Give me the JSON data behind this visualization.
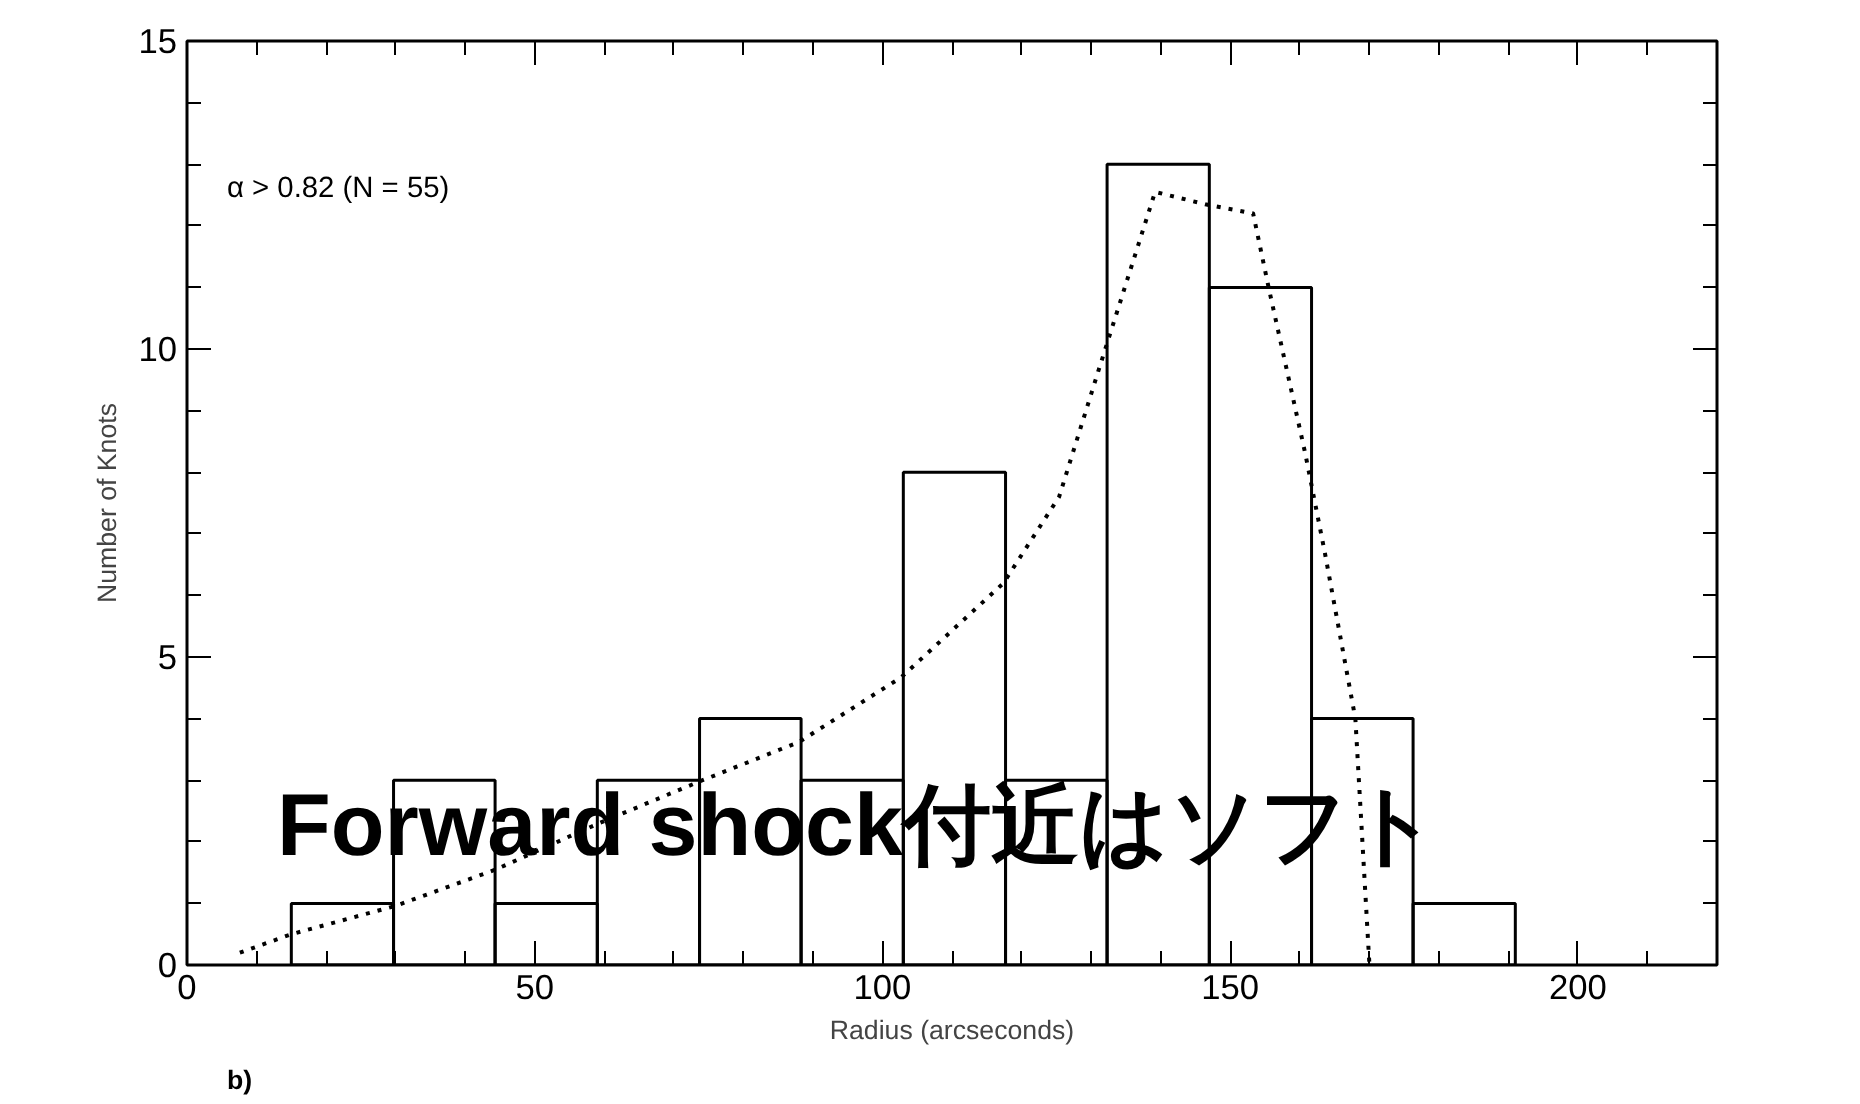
{
  "chart_data": {
    "type": "histogram",
    "xlabel": "Radius (arcseconds)",
    "ylabel": "Number of Knots",
    "bins": [
      15,
      29.7,
      44.3,
      59,
      73.7,
      88.3,
      103,
      117.7,
      132.3,
      147,
      161.7,
      176.3,
      191
    ],
    "values": [
      1,
      3,
      1,
      3,
      4,
      3,
      8,
      3,
      13,
      11,
      4,
      1
    ],
    "color": "#000000",
    "series": [
      {
        "type": "line",
        "color": "#000000",
        "line_style": "dotted",
        "x": [
          7.6,
          15,
          30,
          44.4,
          59,
          73.7,
          88,
          102.7,
          117.4,
          125.4,
          131.2,
          139.2,
          146.4,
          153.3,
          155.6,
          160.8,
          163.6,
          168,
          170
        ],
        "values": [
          0.2,
          0.5,
          0.96,
          1.55,
          2.29,
          2.98,
          3.62,
          4.67,
          6.2,
          7.6,
          9.7,
          12.55,
          12.35,
          12.2,
          10.96,
          8.3,
          6.7,
          4.0,
          0.05
        ]
      }
    ],
    "xlim": [
      0,
      220
    ],
    "ylim": [
      0,
      15
    ],
    "xticks": [
      0,
      {
        "value": 10,
        "label": null
      },
      {
        "value": 20,
        "label": null
      },
      {
        "value": 30,
        "label": null
      },
      {
        "value": 40,
        "label": null
      },
      50,
      {
        "value": 60,
        "label": null
      },
      {
        "value": 70,
        "label": null
      },
      {
        "value": 80,
        "label": null
      },
      {
        "value": 90,
        "label": null
      },
      100,
      {
        "value": 110,
        "label": null
      },
      {
        "value": 120,
        "label": null
      },
      {
        "value": 130,
        "label": null
      },
      {
        "value": 140,
        "label": null
      },
      150,
      {
        "value": 160,
        "label": null
      },
      {
        "value": 170,
        "label": null
      },
      {
        "value": 180,
        "label": null
      },
      {
        "value": 190,
        "label": null
      },
      200,
      {
        "value": 210,
        "label": null
      }
    ],
    "yticks": [
      0,
      {
        "value": 1,
        "label": null
      },
      {
        "value": 2,
        "label": null
      },
      {
        "value": 3,
        "label": null
      },
      {
        "value": 4,
        "label": null
      },
      5,
      {
        "value": 6,
        "label": null
      },
      {
        "value": 7,
        "label": null
      },
      {
        "value": 8,
        "label": null
      },
      {
        "value": 9,
        "label": null
      },
      10,
      {
        "value": 11,
        "label": null
      },
      {
        "value": 12,
        "label": null
      },
      {
        "value": 13,
        "label": null
      },
      {
        "value": 14,
        "label": null
      },
      15
    ],
    "grid": false,
    "annotations": [
      "α > 0.82 (N = 55)",
      "b)",
      "Forward shock付近はソフト"
    ]
  }
}
